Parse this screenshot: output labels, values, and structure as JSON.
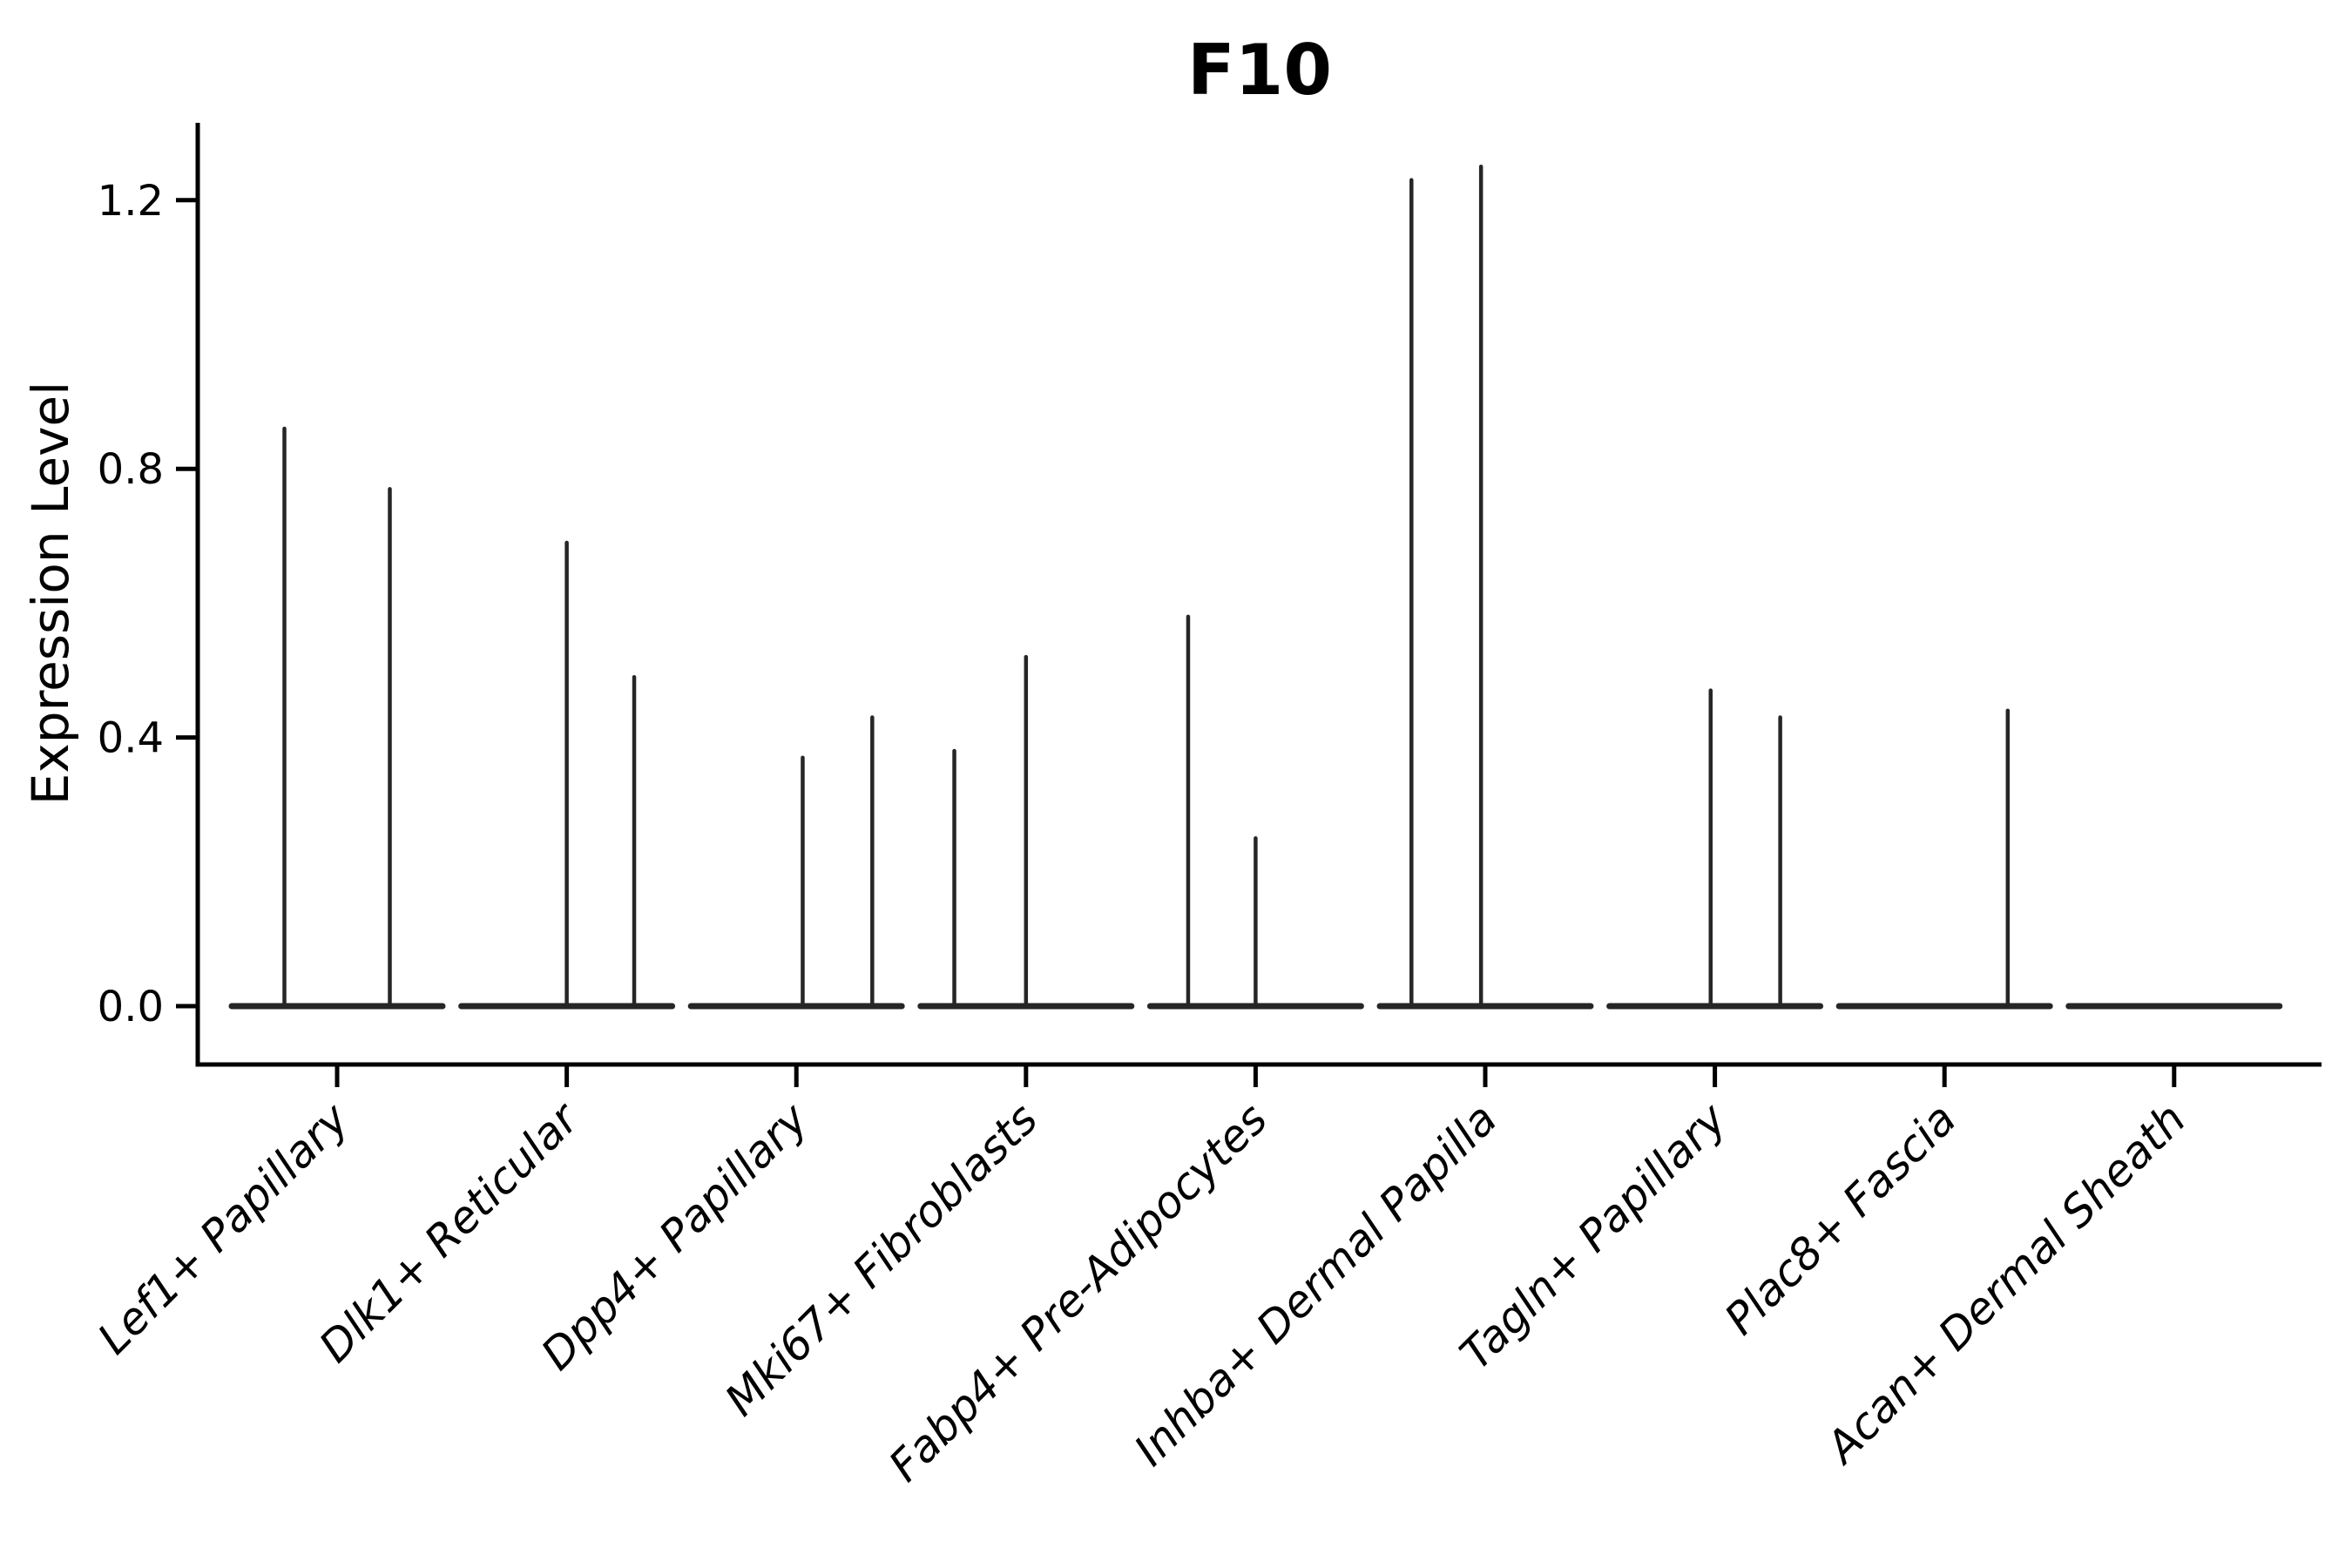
{
  "chart_data": {
    "type": "violin",
    "title": "F10",
    "xlabel": "",
    "ylabel": "Expression Level",
    "grid": false,
    "legend": "none",
    "ylim": [
      -0.09,
      1.32
    ],
    "y_ticks": [
      {
        "value": 0.0,
        "label": "0.0"
      },
      {
        "value": 0.4,
        "label": "0.4"
      },
      {
        "value": 0.8,
        "label": "0.8"
      },
      {
        "value": 1.2,
        "label": "1.2"
      }
    ],
    "categories": [
      {
        "label": "Lef1+ Papillary",
        "spikes": [
          {
            "pos": -0.25,
            "value": 0.86
          },
          {
            "pos": 0.25,
            "value": 0.77
          }
        ]
      },
      {
        "label": "Dlk1+ Reticular",
        "spikes": [
          {
            "pos": 0.0,
            "value": 0.69
          },
          {
            "pos": 0.32,
            "value": 0.49
          }
        ]
      },
      {
        "label": "Dpp4+ Papillary",
        "spikes": [
          {
            "pos": 0.03,
            "value": 0.37
          },
          {
            "pos": 0.36,
            "value": 0.43
          }
        ]
      },
      {
        "label": "Mki67+ Fibroblasts",
        "spikes": [
          {
            "pos": -0.34,
            "value": 0.38
          },
          {
            "pos": 0.0,
            "value": 0.52
          }
        ]
      },
      {
        "label": "Fabp4+ Pre-Adipocytes",
        "spikes": [
          {
            "pos": -0.32,
            "value": 0.58
          },
          {
            "pos": 0.0,
            "value": 0.25
          }
        ]
      },
      {
        "label": "Inhba+ Dermal Papilla",
        "spikes": [
          {
            "pos": -0.35,
            "value": 1.23
          },
          {
            "pos": -0.02,
            "value": 1.25
          }
        ]
      },
      {
        "label": "Tagln+ Papillary",
        "spikes": [
          {
            "pos": -0.02,
            "value": 0.47
          },
          {
            "pos": 0.31,
            "value": 0.43
          }
        ]
      },
      {
        "label": "Plac8+ Fascia",
        "spikes": [
          {
            "pos": 0.3,
            "value": 0.44
          }
        ]
      },
      {
        "label": "Acan+ Dermal Sheath",
        "spikes": []
      }
    ],
    "colors": {
      "violin_line": "#262626",
      "axis_line": "#000000",
      "text": "#000000",
      "background": "#ffffff"
    }
  }
}
